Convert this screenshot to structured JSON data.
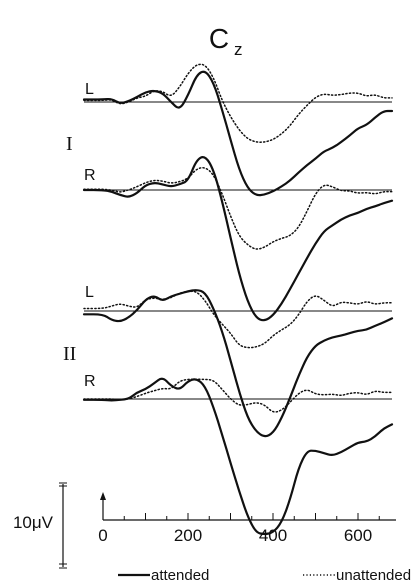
{
  "chart_data": {
    "type": "line",
    "title": "C",
    "title_subscript": "z",
    "x_ticks": [
      0,
      200,
      400,
      600
    ],
    "x_range": [
      0,
      700
    ],
    "y_scale_label": "10μV",
    "y_scale_value": 10,
    "y_polarity": "negative up",
    "groups": [
      {
        "label": "I",
        "panels": [
          {
            "label": "L"
          },
          {
            "label": "R"
          }
        ]
      },
      {
        "label": "II",
        "panels": [
          {
            "label": "L"
          },
          {
            "label": "R"
          }
        ]
      }
    ],
    "legend": [
      {
        "name": "attended",
        "style": "solid"
      },
      {
        "name": "unattended",
        "style": "dotted"
      }
    ],
    "series": [
      {
        "group": "I",
        "panel": "L",
        "name": "attended",
        "x": [
          0,
          20,
          40,
          60,
          80,
          100,
          120,
          140,
          160,
          180,
          200,
          220,
          240,
          260,
          280,
          300,
          320,
          340,
          360,
          380,
          400,
          420,
          440,
          460,
          480,
          500,
          520,
          540,
          560,
          580,
          600,
          620,
          640,
          660,
          680
        ],
        "y": [
          -0.3,
          -0.4,
          0.2,
          -0.1,
          -0.6,
          -1.2,
          -1.4,
          -1.1,
          0.0,
          1.0,
          -0.8,
          -3.3,
          -3.9,
          -2.4,
          0.9,
          4.6,
          8.2,
          10.5,
          11.4,
          11.3,
          10.9,
          10.3,
          9.6,
          8.6,
          7.7,
          6.9,
          6.0,
          5.6,
          4.9,
          4.1,
          3.2,
          2.8,
          1.9,
          1.1,
          1.1
        ]
      },
      {
        "group": "I",
        "panel": "L",
        "name": "unattended",
        "x": [
          0,
          20,
          40,
          60,
          80,
          100,
          120,
          140,
          160,
          180,
          200,
          220,
          240,
          260,
          280,
          300,
          320,
          340,
          360,
          380,
          400,
          420,
          440,
          460,
          480,
          500,
          520,
          540,
          560,
          580,
          600,
          620,
          640,
          660,
          680
        ],
        "y": [
          -0.2,
          -0.3,
          0.3,
          0.0,
          -0.5,
          -0.7,
          -1.4,
          -1.3,
          -0.6,
          -1.8,
          -3.5,
          -4.6,
          -4.6,
          -3.0,
          -0.2,
          1.8,
          3.4,
          4.5,
          4.9,
          4.9,
          4.6,
          3.9,
          2.9,
          1.5,
          0.4,
          -0.6,
          -1.0,
          -0.8,
          -0.9,
          -1.1,
          -1.1,
          -0.7,
          -0.9,
          -0.5,
          -0.5
        ]
      },
      {
        "group": "I",
        "panel": "R",
        "name": "attended",
        "x": [
          0,
          20,
          40,
          60,
          80,
          100,
          120,
          140,
          160,
          180,
          200,
          220,
          240,
          260,
          280,
          300,
          320,
          340,
          360,
          380,
          400,
          420,
          440,
          460,
          480,
          500,
          520,
          540,
          560,
          580,
          600,
          620,
          640,
          660,
          680
        ],
        "y": [
          0.0,
          0.2,
          0.6,
          0.9,
          0.4,
          -0.6,
          -0.9,
          -0.7,
          -0.4,
          -0.7,
          -1.1,
          -3.7,
          -4.2,
          -2.5,
          1.3,
          5.8,
          10.2,
          13.6,
          15.6,
          16.0,
          15.3,
          13.9,
          12.1,
          10.2,
          8.3,
          6.5,
          5.0,
          4.3,
          3.6,
          3.1,
          2.8,
          2.3,
          2.0,
          1.6,
          1.3
        ]
      },
      {
        "group": "I",
        "panel": "R",
        "name": "unattended",
        "x": [
          0,
          20,
          40,
          60,
          80,
          100,
          120,
          140,
          160,
          180,
          200,
          220,
          240,
          260,
          280,
          300,
          320,
          340,
          360,
          380,
          400,
          420,
          440,
          460,
          480,
          500,
          520,
          540,
          560,
          580,
          600,
          620,
          640,
          660,
          680
        ],
        "y": [
          -0.1,
          0.0,
          0.3,
          0.0,
          -0.4,
          -0.9,
          -1.2,
          -1.1,
          -0.8,
          -1.0,
          -1.4,
          -2.6,
          -2.8,
          -1.9,
          0.4,
          3.2,
          5.6,
          6.7,
          7.3,
          7.0,
          6.3,
          5.9,
          5.6,
          4.6,
          2.6,
          0.4,
          -0.7,
          -0.4,
          0.1,
          0.1,
          0.4,
          0.3,
          0.5,
          0.2,
          0.2
        ]
      },
      {
        "group": "II",
        "panel": "L",
        "name": "attended",
        "x": [
          0,
          20,
          40,
          60,
          80,
          100,
          120,
          140,
          160,
          180,
          200,
          220,
          240,
          260,
          280,
          300,
          320,
          340,
          360,
          380,
          400,
          420,
          440,
          460,
          480,
          500,
          520,
          540,
          560,
          580,
          600,
          620,
          640,
          660,
          680
        ],
        "y": [
          0.4,
          1.1,
          1.3,
          0.8,
          -0.1,
          -1.4,
          -1.9,
          -1.2,
          -1.8,
          -2.1,
          -2.4,
          -2.6,
          -2.3,
          -0.3,
          2.4,
          6.0,
          9.8,
          13.0,
          14.7,
          15.4,
          14.9,
          13.1,
          10.6,
          7.9,
          5.6,
          4.2,
          3.6,
          3.2,
          3.0,
          2.7,
          2.4,
          2.3,
          1.8,
          1.4,
          0.9
        ]
      },
      {
        "group": "II",
        "panel": "L",
        "name": "unattended",
        "x": [
          0,
          20,
          40,
          60,
          80,
          100,
          120,
          140,
          160,
          180,
          200,
          220,
          240,
          260,
          280,
          300,
          320,
          340,
          360,
          380,
          400,
          420,
          440,
          460,
          480,
          500,
          520,
          540,
          560,
          580,
          600,
          620,
          640,
          660,
          680
        ],
        "y": [
          -0.3,
          -0.6,
          -0.9,
          -0.6,
          -0.4,
          -1.4,
          -1.6,
          -1.4,
          -1.6,
          -2.2,
          -2.4,
          -2.4,
          -1.3,
          0.4,
          1.6,
          2.7,
          4.2,
          4.5,
          4.4,
          4.0,
          3.0,
          2.3,
          1.7,
          0.5,
          -1.2,
          -2.0,
          -1.3,
          -0.5,
          -1.1,
          -1.0,
          -0.8,
          -1.2,
          -0.8,
          -1.0,
          -1.0
        ]
      },
      {
        "group": "II",
        "panel": "R",
        "name": "attended",
        "x": [
          0,
          20,
          40,
          60,
          80,
          100,
          120,
          140,
          160,
          180,
          200,
          220,
          240,
          260,
          280,
          300,
          320,
          340,
          360,
          380,
          400,
          420,
          440,
          460,
          480,
          500,
          520,
          540,
          560,
          580,
          600,
          620,
          640,
          660,
          680
        ],
        "y": [
          0.1,
          0.2,
          0.1,
          0.0,
          -0.8,
          -1.2,
          -1.9,
          -2.7,
          -1.6,
          -1.1,
          -2.2,
          -2.5,
          -1.6,
          1.0,
          4.3,
          7.8,
          11.2,
          14.3,
          16.3,
          16.5,
          16.3,
          15.1,
          12.3,
          8.4,
          6.3,
          6.3,
          6.6,
          6.9,
          6.5,
          5.9,
          5.3,
          5.2,
          4.6,
          3.6,
          3.1
        ]
      },
      {
        "group": "II",
        "panel": "R",
        "name": "unattended",
        "x": [
          0,
          20,
          40,
          60,
          80,
          100,
          120,
          140,
          160,
          180,
          200,
          220,
          240,
          260,
          280,
          300,
          320,
          340,
          360,
          380,
          400,
          420,
          440,
          460,
          480,
          500,
          520,
          540,
          560,
          580,
          600,
          620,
          640,
          660,
          680
        ],
        "y": [
          0.0,
          0.0,
          0.1,
          0.0,
          -0.3,
          -0.7,
          -1.0,
          -1.3,
          -1.2,
          -2.2,
          -2.4,
          -2.4,
          -2.4,
          -2.3,
          -1.2,
          0.0,
          0.8,
          0.7,
          0.4,
          0.7,
          1.7,
          1.4,
          0.4,
          -0.7,
          -1.2,
          -0.6,
          -0.5,
          -0.6,
          -0.4,
          -0.7,
          -0.8,
          -0.5,
          -1.0,
          -0.8,
          -0.8
        ]
      }
    ]
  }
}
